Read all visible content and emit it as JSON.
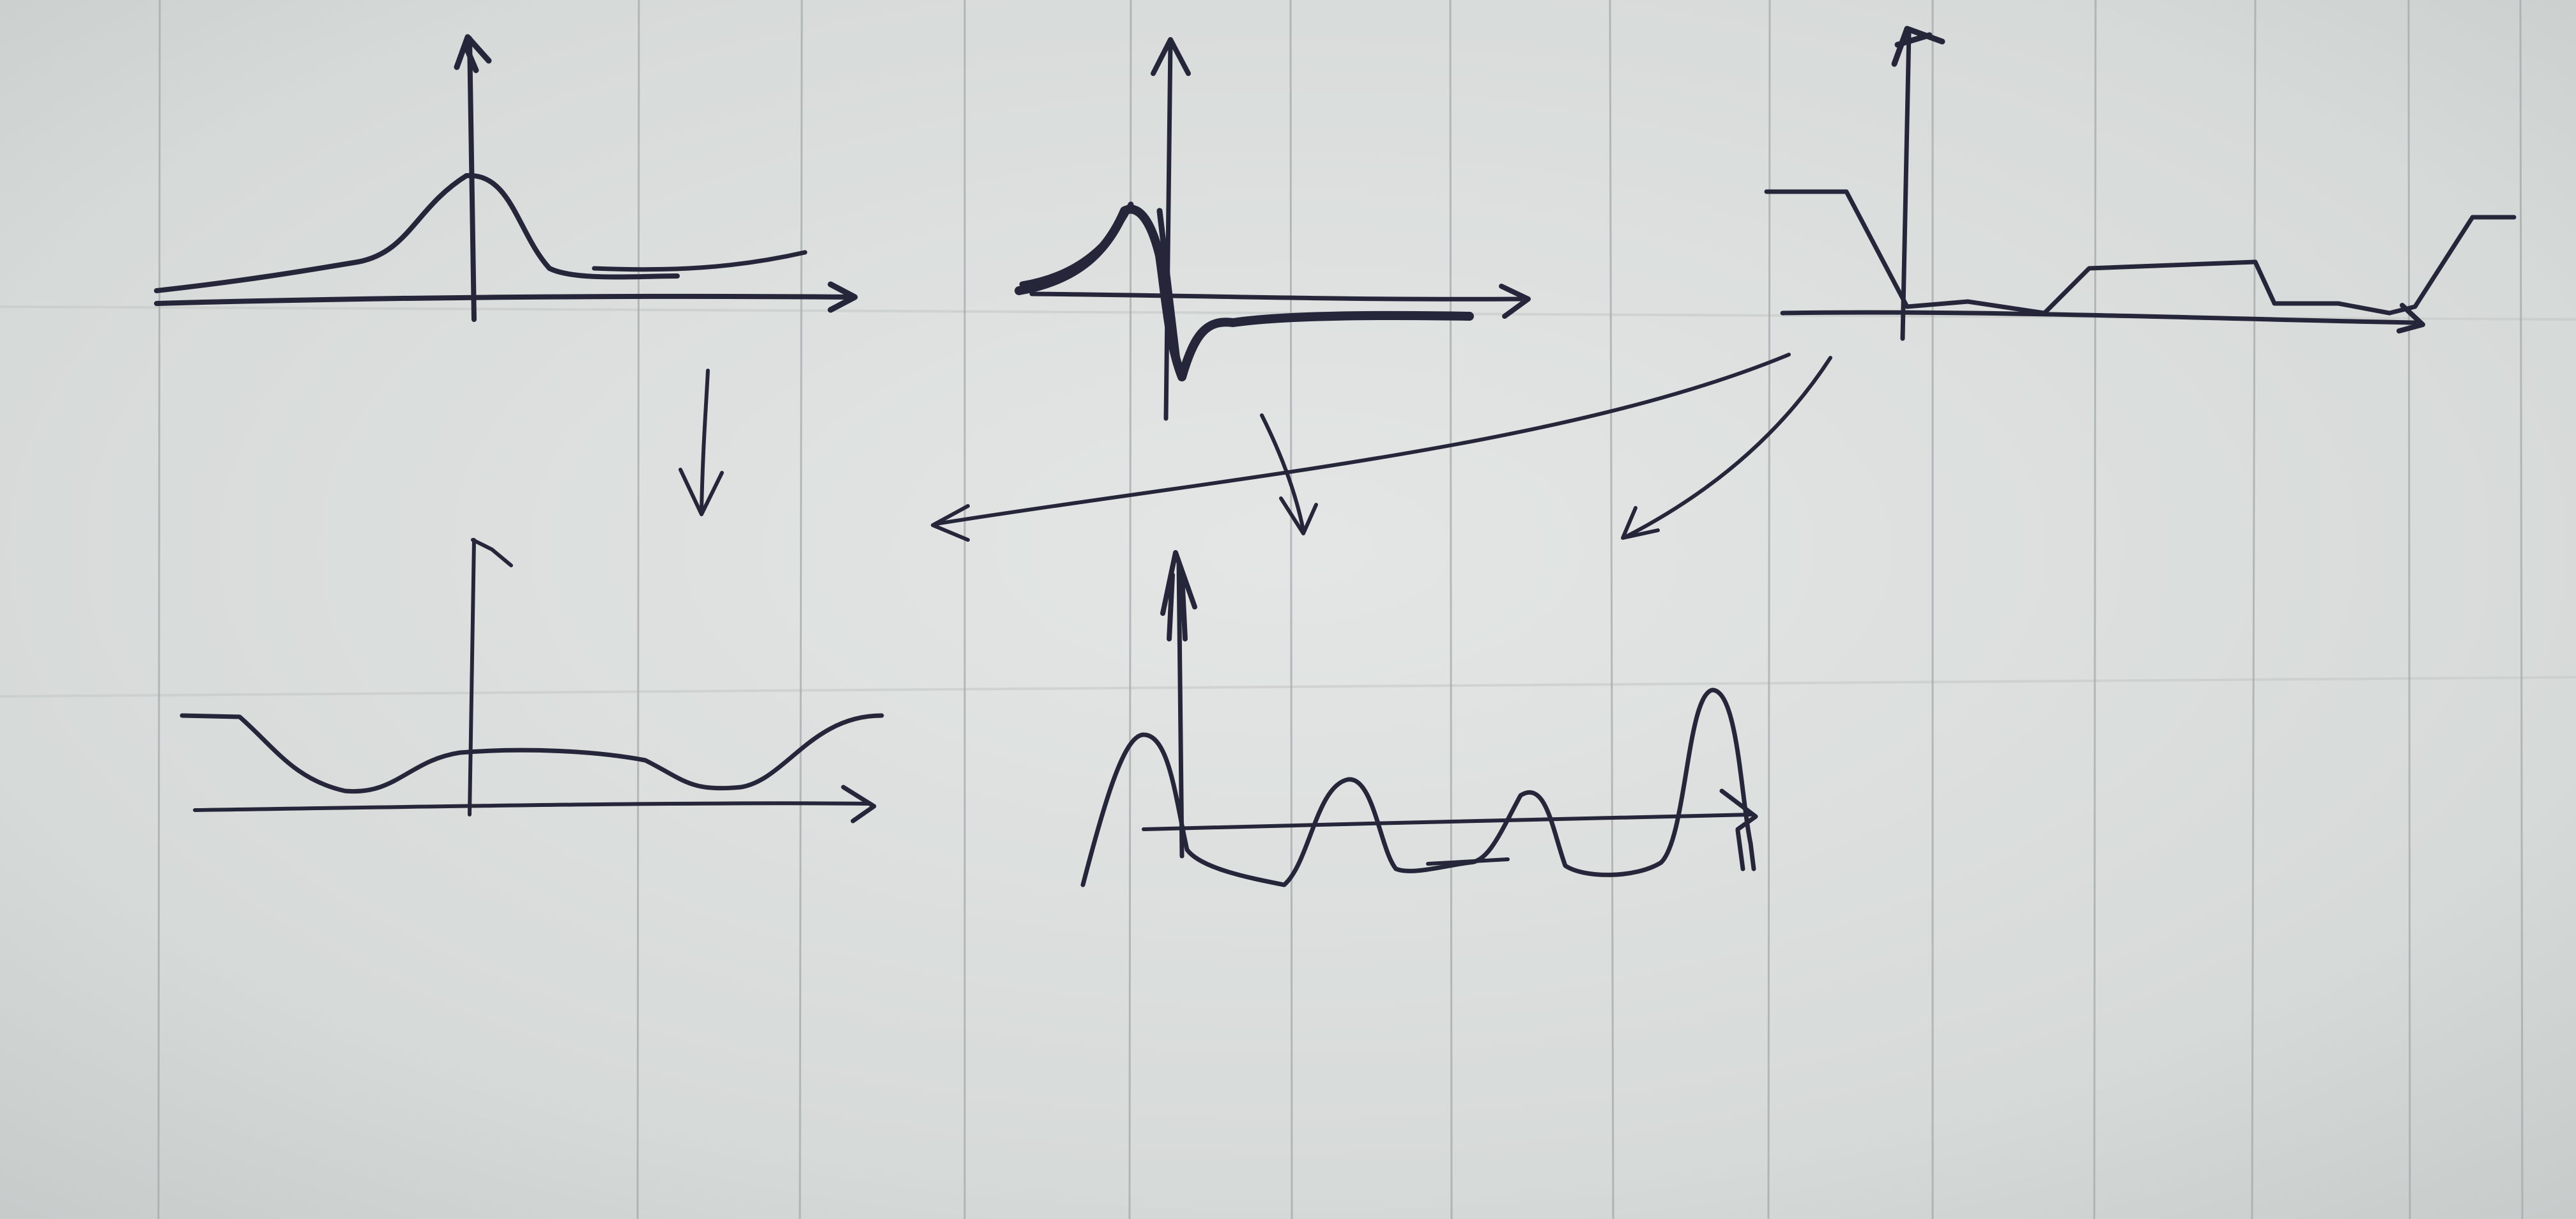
{
  "paper": {
    "background": "#d6dad8",
    "ink_color": "#25263a",
    "rule_color": "#a4a9ab",
    "ruled": true
  },
  "sketches": [
    {
      "id": "gaussian-bump",
      "description_kind": "single-peak-curve"
    },
    {
      "id": "impulse-response",
      "description_kind": "sharp-spike-with-undershoot"
    },
    {
      "id": "stepped-profile",
      "description_kind": "piecewise-plateaus"
    },
    {
      "id": "smoothed-profile",
      "description_kind": "smoothed-plateaus"
    },
    {
      "id": "periodic-peaks",
      "description_kind": "repeated-peaks"
    }
  ]
}
